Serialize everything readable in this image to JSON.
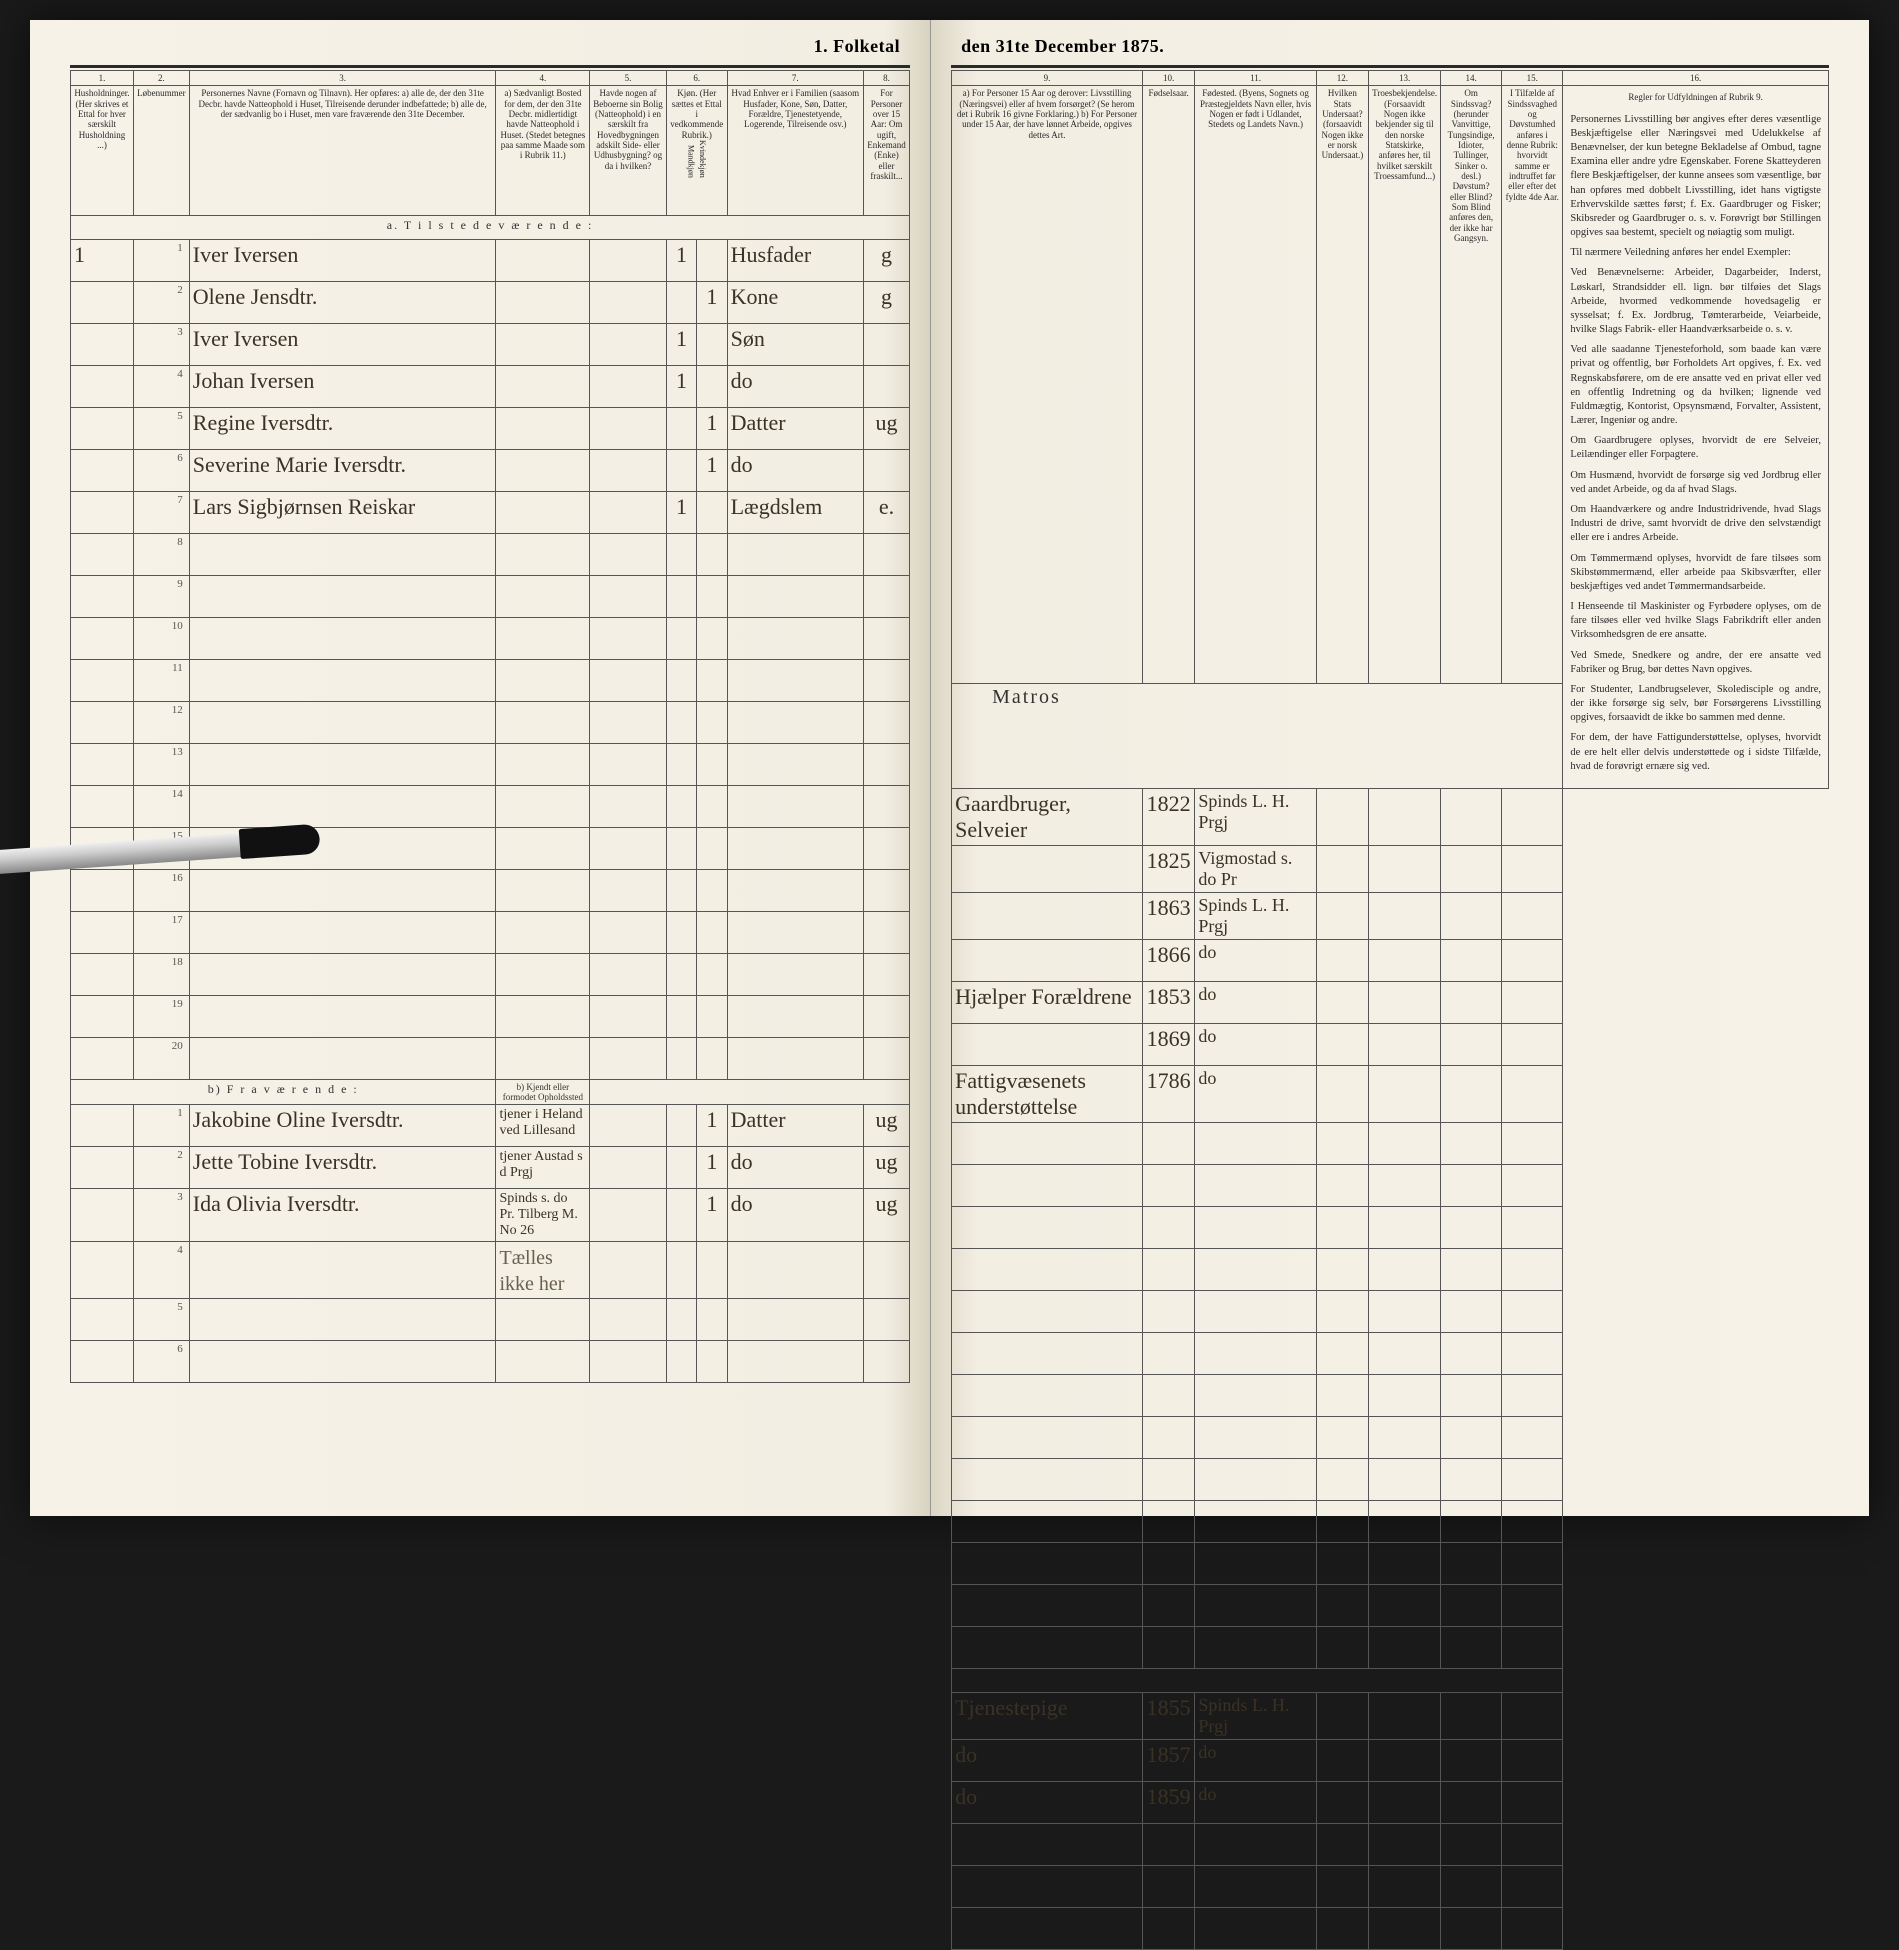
{
  "title_left": "1. Folketal",
  "title_right": "den 31te December 1875.",
  "columns_left": {
    "c1": "1.",
    "c2": "2.",
    "c3": "3.",
    "c4": "4.",
    "c5": "5.",
    "c6": "6.",
    "c7": "7.",
    "c8": "8."
  },
  "columns_right": {
    "c9": "9.",
    "c10": "10.",
    "c11": "11.",
    "c12": "12.",
    "c13": "13.",
    "c14": "14.",
    "c15": "15.",
    "c16": "16."
  },
  "headers_left": {
    "h1": "Husholdninger. (Her skrives et Ettal for hver særskilt Husholdning ...)",
    "h2": "Løbenummer",
    "h3": "Personernes Navne (Fornavn og Tilnavn). Her opføres: a) alle de, der den 31te Decbr. havde Natteophold i Huset, Tilreisende derunder indbefattede; b) alle de, der sædvanlig bo i Huset, men vare fraværende den 31te December.",
    "h4": "a) Sædvanligt Bosted for dem, der den 31te Decbr. midlertidigt havde Natteophold i Huset. (Stedet betegnes paa samme Maade som i Rubrik 11.)",
    "h5": "Havde nogen af Beboerne sin Bolig (Natteophold) i en særskilt fra Hovedbygningen adskilt Side- eller Udhusbygning? og da i hvilken?",
    "h6": "Kjøn. (Her sættes et Ettal i vedkommende Rubrik.)",
    "h6a": "Mandkjøn",
    "h6b": "Kvindekjøn",
    "h7": "Hvad Enhver er i Familien (saasom Husfader, Kone, Søn, Datter, Forældre, Tjenestetyende, Logerende, Tilreisende osv.)",
    "h8": "For Personer over 15 Aar: Om ugift, Enkemand (Enke) eller fraskilt..."
  },
  "headers_right": {
    "h9": "a) For Personer 15 Aar og derover: Livsstilling (Næringsvei) eller af hvem forsørget? (Se herom det i Rubrik 16 givne Forklaring.) b) For Personer under 15 Aar, der have lønnet Arbeide, opgives dettes Art.",
    "h10": "Fødselsaar.",
    "h11": "Fødested. (Byens, Sognets og Præstegjeldets Navn eller, hvis Nogen er født i Udlandet, Stedets og Landets Navn.)",
    "h12": "Hvilken Stats Undersaat? (forsaavidt Nogen ikke er norsk Undersaat.)",
    "h13": "Troesbekjendelse. (Forsaavidt Nogen ikke bekjender sig til den norske Statskirke, anføres her, til hvilket særskilt Troessamfund...)",
    "h14": "Om Sindssvag? (herunder Vanvittige, Tungsindige, Idioter, Tullinger, Sinker o. desl.) Døvstum? eller Blind? Som Blind anføres den, der ikke har Gangsyn.",
    "h15": "I Tilfælde af Sindssvaghed og Døvstumhed anføres i denne Rubrik: hvorvidt samme er indtruffet før eller efter det fyldte 4de Aar.",
    "h16": "Regler for Udfyldningen af Rubrik 9."
  },
  "section_a": "a.  T i l s t e d e v æ r e n d e :",
  "section_b": "b)  F r a v æ r e n d e :",
  "section_b_col4": "b) Kjendt eller formodet Opholdssted",
  "occupation_top": "Matros",
  "rows_a": [
    {
      "hh": "1",
      "no": "1",
      "name": "Iver Iversen",
      "mk": "1",
      "kv": "",
      "fam": "Husfader",
      "civ": "g",
      "liv": "Gaardbruger, Selveier",
      "yr": "1822",
      "born": "Spinds L. H. Prgj"
    },
    {
      "hh": "",
      "no": "2",
      "name": "Olene Jensdtr.",
      "mk": "",
      "kv": "1",
      "fam": "Kone",
      "civ": "g",
      "liv": "",
      "yr": "1825",
      "born": "Vigmostad s. do Pr"
    },
    {
      "hh": "",
      "no": "3",
      "name": "Iver Iversen",
      "mk": "1",
      "kv": "",
      "fam": "Søn",
      "civ": "",
      "liv": "",
      "yr": "1863",
      "born": "Spinds L. H. Prgj"
    },
    {
      "hh": "",
      "no": "4",
      "name": "Johan Iversen",
      "mk": "1",
      "kv": "",
      "fam": "do",
      "civ": "",
      "liv": "",
      "yr": "1866",
      "born": "do"
    },
    {
      "hh": "",
      "no": "5",
      "name": "Regine Iversdtr.",
      "mk": "",
      "kv": "1",
      "fam": "Datter",
      "civ": "ug",
      "liv": "Hjælper Forældrene",
      "yr": "1853",
      "born": "do"
    },
    {
      "hh": "",
      "no": "6",
      "name": "Severine Marie Iversdtr.",
      "mk": "",
      "kv": "1",
      "fam": "do",
      "civ": "",
      "liv": "",
      "yr": "1869",
      "born": "do"
    },
    {
      "hh": "",
      "no": "7",
      "name": "Lars Sigbjørnsen Reiskar",
      "mk": "1",
      "kv": "",
      "fam": "Lægdslem",
      "civ": "e.",
      "liv": "Fattigvæsenets understøttelse",
      "yr": "1786",
      "born": "do"
    }
  ],
  "blank_a": [
    "8",
    "9",
    "10",
    "11",
    "12",
    "13",
    "14",
    "15",
    "16",
    "17",
    "18",
    "19",
    "20"
  ],
  "rows_b": [
    {
      "no": "1",
      "name": "Jakobine Oline Iversdtr.",
      "loc": "tjener i Heland ved Lillesand",
      "mk": "",
      "kv": "1",
      "fam": "Datter",
      "civ": "ug",
      "liv": "Tjenestepige",
      "yr": "1855",
      "born": "Spinds L. H. Prgj"
    },
    {
      "no": "2",
      "name": "Jette Tobine Iversdtr.",
      "loc": "tjener Austad s d Prgj",
      "mk": "",
      "kv": "1",
      "fam": "do",
      "civ": "ug",
      "liv": "do",
      "yr": "1857",
      "born": "do"
    },
    {
      "no": "3",
      "name": "Ida Olivia Iversdtr.",
      "loc": "Spinds s. do Pr. Tilberg M. No 26",
      "mk": "",
      "kv": "1",
      "fam": "do",
      "civ": "ug",
      "liv": "do",
      "yr": "1859",
      "born": "do"
    }
  ],
  "not_counted": "Tælles ikke her",
  "blank_b": [
    "4",
    "5",
    "6"
  ],
  "notes": [
    "Personernes Livsstilling bør angives efter deres væsentlige Beskjæftigelse eller Næringsvei med Udelukkelse af Benævnelser, der kun betegne Bekladelse af Ombud, tagne Examina eller andre ydre Egenskaber. Forene Skatteyderen flere Beskjæftigelser, der kunne ansees som væsentlige, bør han opføres med dobbelt Livsstilling, idet hans vigtigste Erhvervskilde sættes først; f. Ex. Gaardbruger og Fisker; Skibsreder og Gaardbruger o. s. v. Forøvrigt bør Stillingen opgives saa bestemt, specielt og nøiagtig som muligt.",
    "Til nærmere Veiledning anføres her endel Exempler:",
    "Ved Benævnelserne: Arbeider, Dagarbeider, Inderst, Løskarl, Strandsidder ell. lign. bør tilføies det Slags Arbeide, hvormed vedkommende hovedsagelig er sysselsat; f. Ex. Jordbrug, Tømterarbeide, Veiarbeide, hvilke Slags Fabrik- eller Haandværksarbeide o. s. v.",
    "Ved alle saadanne Tjenesteforhold, som baade kan være privat og offentlig, bør Forholdets Art opgives, f. Ex. ved Regnskabsførere, om de ere ansatte ved en privat eller ved en offentlig Indretning og da hvilken; lignende ved Fuldmægtig, Kontorist, Opsynsmænd, Forvalter, Assistent, Lærer, Ingeniør og andre.",
    "Om Gaardbrugere oplyses, hvorvidt de ere Selveier, Leilændinger eller Forpagtere.",
    "Om Husmænd, hvorvidt de forsørge sig ved Jordbrug eller ved andet Arbeide, og da af hvad Slags.",
    "Om Haandværkere og andre Industridrivende, hvad Slags Industri de drive, samt hvorvidt de drive den selvstændigt eller ere i andres Arbeide.",
    "Om Tømmermænd oplyses, hvorvidt de fare tilsøes som Skibstømmermænd, eller arbeide paa Skibsværfter, eller beskjæftiges ved andet Tømmermandsarbeide.",
    "I Henseende til Maskinister og Fyrbødere oplyses, om de fare tilsøes eller ved hvilke Slags Fabrikdrift eller anden Virksomhedsgren de ere ansatte.",
    "Ved Smede, Snedkere og andre, der ere ansatte ved Fabriker og Brug, bør dettes Navn opgives.",
    "For Studenter, Landbrugselever, Skoledisciple og andre, der ikke forsørge sig selv, bør Forsørgerens Livsstilling opgives, forsaavidt de ikke bo sammen med denne.",
    "For dem, der have Fattigunderstøttelse, oplyses, hvorvidt de ere helt eller delvis understøttede og i sidste Tilfælde, hvad de forøvrigt ernære sig ved."
  ],
  "colors": {
    "page_bg": "#f4f0e6",
    "ink": "#2a2a2a",
    "handwriting": "#3a3224",
    "rule": "#555555"
  }
}
